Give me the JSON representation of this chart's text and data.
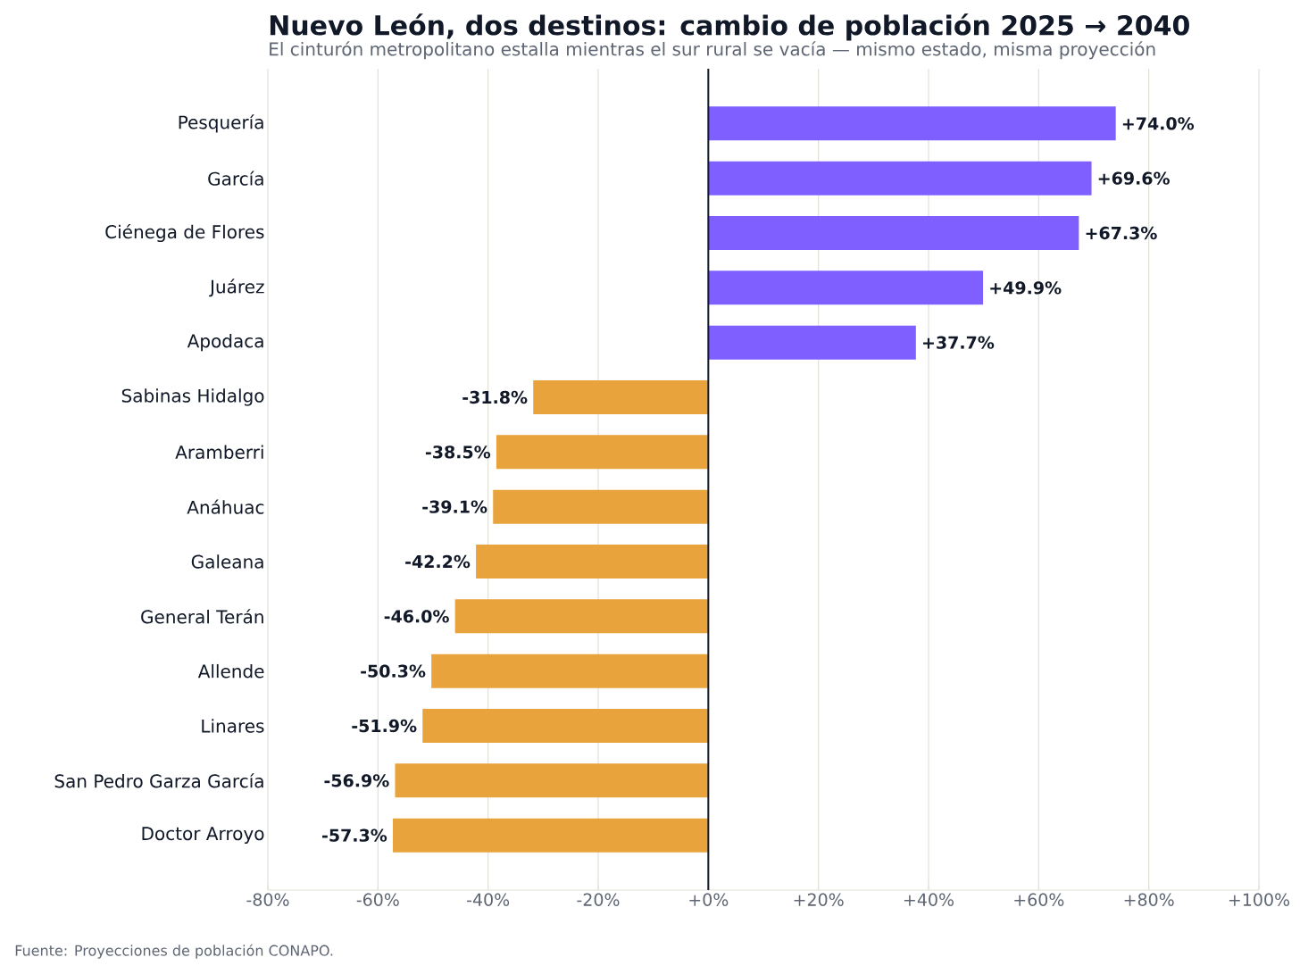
{
  "chart_data": {
    "type": "bar",
    "orientation": "horizontal",
    "title": "Nuevo León, dos destinos: cambio de población 2025 → 2040",
    "subtitle": "El cinturón metropolitano estalla mientras el sur rural se vacía — mismo estado, misma proyección",
    "annotations": [
      "Fuente: Proyecciones de población CONAPO."
    ],
    "categories": [
      "Pesquería",
      "García",
      "Ciénega de Flores",
      "Juárez",
      "Apodaca",
      "Sabinas Hidalgo",
      "Aramberri",
      "Anáhuac",
      "Galeana",
      "General Terán",
      "Allende",
      "Linares",
      "San Pedro Garza García",
      "Doctor Arroyo"
    ],
    "values": [
      74.0,
      69.6,
      67.3,
      49.9,
      37.7,
      -31.8,
      -38.5,
      -39.1,
      -42.2,
      -46.0,
      -50.3,
      -51.9,
      -56.9,
      -57.3
    ],
    "value_labels": [
      "+74.0%",
      "+69.6%",
      "+67.3%",
      "+49.9%",
      "+37.7%",
      "-31.8%",
      "-38.5%",
      "-39.1%",
      "-42.2%",
      "-46.0%",
      "-50.3%",
      "-51.9%",
      "-56.9%",
      "-57.3%"
    ],
    "colors": [
      "#7f5fff",
      "#7f5fff",
      "#7f5fff",
      "#7f5fff",
      "#7f5fff",
      "#e8a33c",
      "#e8a33c",
      "#e8a33c",
      "#e8a33c",
      "#e8a33c",
      "#e8a33c",
      "#e8a33c",
      "#e8a33c",
      "#e8a33c"
    ],
    "xlim": [
      -80,
      100
    ],
    "xticks": [
      {
        "value": -80,
        "label": "-80%"
      },
      {
        "value": -60,
        "label": "-60%"
      },
      {
        "value": -40,
        "label": "-40%"
      },
      {
        "value": -20,
        "label": "-20%"
      },
      {
        "value": 0,
        "label": "+0%"
      },
      {
        "value": 20,
        "label": "+20%"
      },
      {
        "value": 40,
        "label": "+40%"
      },
      {
        "value": 60,
        "label": "+60%"
      },
      {
        "value": 80,
        "label": "+80%"
      },
      {
        "value": 100,
        "label": "+100%"
      }
    ],
    "grid": "x",
    "ref_lines": [
      {
        "axis": "x",
        "value": 0,
        "color": "#111827"
      }
    ]
  }
}
